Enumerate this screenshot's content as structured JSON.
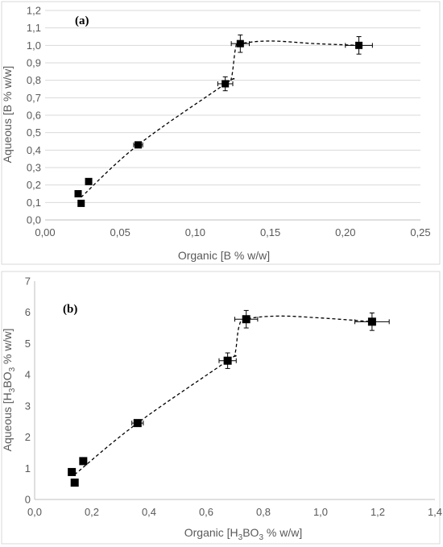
{
  "colors": {
    "grid": "#d9d9d9",
    "frame": "#d9d9d9",
    "marker": "#000000",
    "text": "#595959"
  },
  "chart_data": [
    {
      "type": "scatter",
      "panel_label": "(a)",
      "xlabel": "Organic [B % w/w]",
      "ylabel": "Aqueous [B % w/w]",
      "xlim": [
        0,
        0.25
      ],
      "ylim": [
        0,
        1.2
      ],
      "xticks": [
        "0,00",
        "0,05",
        "0,10",
        "0,15",
        "0,20",
        "0,25"
      ],
      "yticks": [
        "0,0",
        "0,1",
        "0,2",
        "0,3",
        "0,4",
        "0,5",
        "0,6",
        "0,7",
        "0,8",
        "0,9",
        "1,0",
        "1,1",
        "1,2"
      ],
      "grid": "horizontal",
      "points": [
        {
          "x": 0.022,
          "y": 0.15
        },
        {
          "x": 0.024,
          "y": 0.095
        },
        {
          "x": 0.029,
          "y": 0.22
        },
        {
          "x": 0.062,
          "y": 0.43,
          "xerr": 0.003,
          "yerr": 0.015
        },
        {
          "x": 0.12,
          "y": 0.78,
          "xerr": 0.005,
          "yerr": 0.04
        },
        {
          "x": 0.13,
          "y": 1.01,
          "xerr": 0.006,
          "yerr": 0.05
        },
        {
          "x": 0.209,
          "y": 1.0,
          "xerr": 0.009,
          "yerr": 0.05
        }
      ],
      "trend": [
        [
          0.024,
          0.13
        ],
        [
          0.062,
          0.43
        ],
        [
          0.12,
          0.78
        ],
        [
          0.124,
          0.81
        ],
        [
          0.127,
          0.99
        ],
        [
          0.13,
          1.01
        ],
        [
          0.15,
          1.025
        ],
        [
          0.18,
          1.01
        ],
        [
          0.209,
          1.0
        ]
      ]
    },
    {
      "type": "scatter",
      "panel_label": "(b)",
      "xlabel_parts": [
        "Organic [H",
        "3",
        "BO",
        "3",
        " % w/w]"
      ],
      "ylabel_parts": [
        "Aqueous [H",
        "3",
        "BO",
        "3",
        " % w/w]"
      ],
      "xlim": [
        0,
        1.4
      ],
      "ylim": [
        0,
        7
      ],
      "xticks": [
        "0,0",
        "0,2",
        "0,4",
        "0,6",
        "0,8",
        "1,0",
        "1,2",
        "1,4"
      ],
      "yticks": [
        "0",
        "1",
        "2",
        "3",
        "4",
        "5",
        "6",
        "7"
      ],
      "grid": "none",
      "points": [
        {
          "x": 0.13,
          "y": 0.88
        },
        {
          "x": 0.14,
          "y": 0.54
        },
        {
          "x": 0.17,
          "y": 1.23
        },
        {
          "x": 0.36,
          "y": 2.45,
          "xerr": 0.02,
          "yerr": 0.1
        },
        {
          "x": 0.675,
          "y": 4.45,
          "xerr": 0.03,
          "yerr": 0.25
        },
        {
          "x": 0.74,
          "y": 5.78,
          "xerr": 0.04,
          "yerr": 0.28
        },
        {
          "x": 1.18,
          "y": 5.7,
          "xerr": 0.06,
          "yerr": 0.28
        }
      ],
      "trend": [
        [
          0.14,
          0.8
        ],
        [
          0.36,
          2.45
        ],
        [
          0.675,
          4.45
        ],
        [
          0.7,
          4.65
        ],
        [
          0.715,
          5.55
        ],
        [
          0.74,
          5.78
        ],
        [
          0.85,
          5.88
        ],
        [
          1.0,
          5.82
        ],
        [
          1.18,
          5.7
        ]
      ]
    }
  ]
}
